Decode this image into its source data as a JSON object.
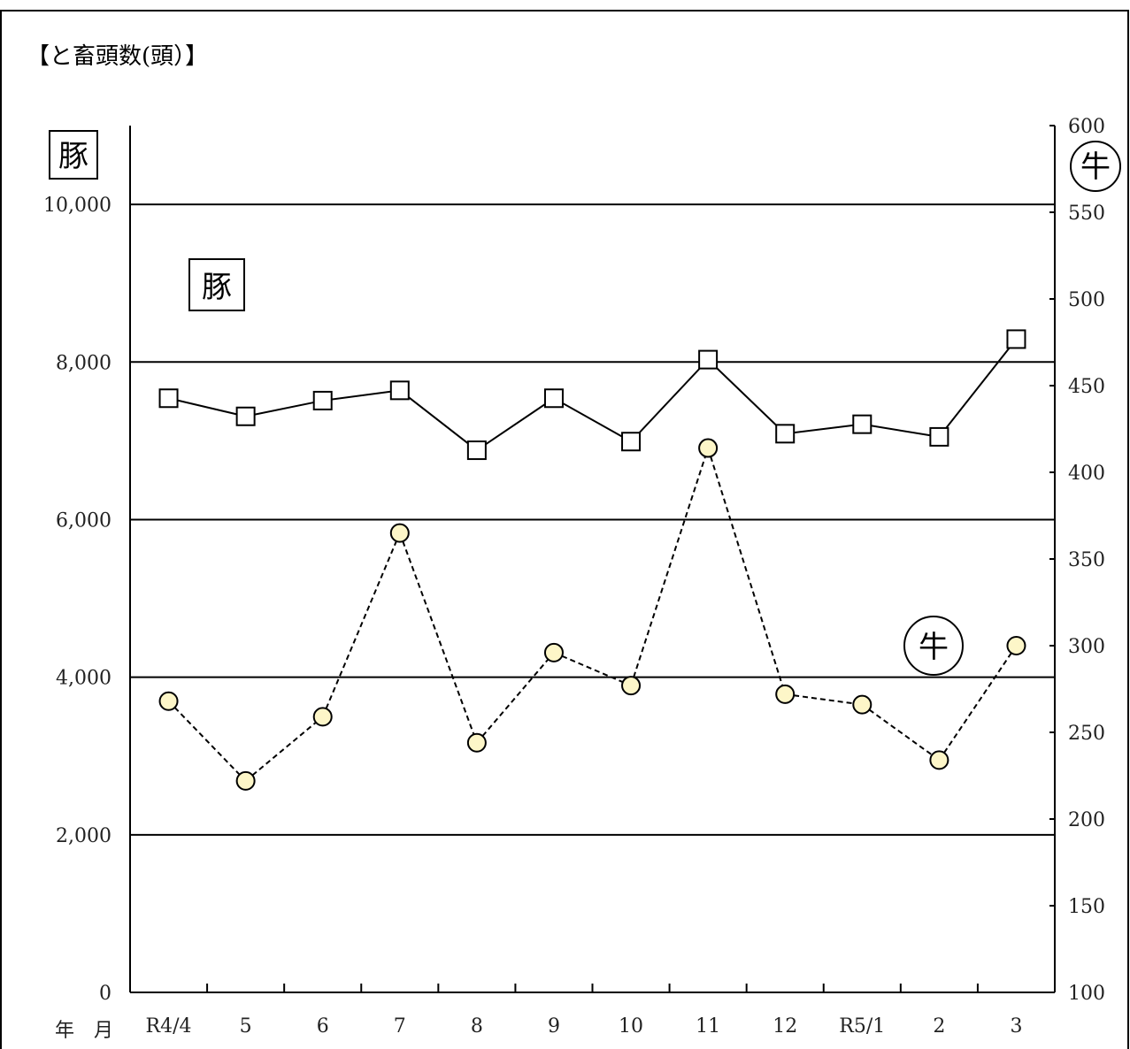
{
  "chart_data": {
    "type": "line",
    "title": "【と畜頭数(頭）】",
    "x_axis_caption": "年　月",
    "categories": [
      "R4/4",
      "5",
      "6",
      "7",
      "8",
      "9",
      "10",
      "11",
      "12",
      "R5/1",
      "2",
      "3"
    ],
    "y_left": {
      "ylim": [
        0,
        11000
      ],
      "ticks": [
        0,
        2000,
        4000,
        6000,
        8000,
        10000
      ],
      "tick_labels": [
        "0",
        "2,000",
        "4,000",
        "6,000",
        "8,000",
        "10,000"
      ],
      "badge": "豚"
    },
    "y_right": {
      "ylim": [
        100,
        600
      ],
      "ticks": [
        100,
        150,
        200,
        250,
        300,
        350,
        400,
        450,
        500,
        550,
        600
      ],
      "tick_labels": [
        "100",
        "150",
        "200",
        "250",
        "300",
        "350",
        "400",
        "450",
        "500",
        "550",
        "600"
      ],
      "badge": "牛"
    },
    "grid": true,
    "series": [
      {
        "name": "豚",
        "axis": "left",
        "marker": "square",
        "line_style": "solid",
        "color": "#000000",
        "marker_fill": "#ffffff",
        "values": [
          7540,
          7310,
          7510,
          7640,
          6880,
          7540,
          6990,
          8030,
          7090,
          7210,
          7050,
          8290
        ]
      },
      {
        "name": "牛",
        "axis": "right",
        "marker": "circle",
        "line_style": "dashed",
        "color": "#000000",
        "marker_fill": "#fdf6c8",
        "values": [
          268,
          222,
          259,
          365,
          244,
          296,
          277,
          414,
          272,
          266,
          234,
          300
        ]
      }
    ]
  }
}
